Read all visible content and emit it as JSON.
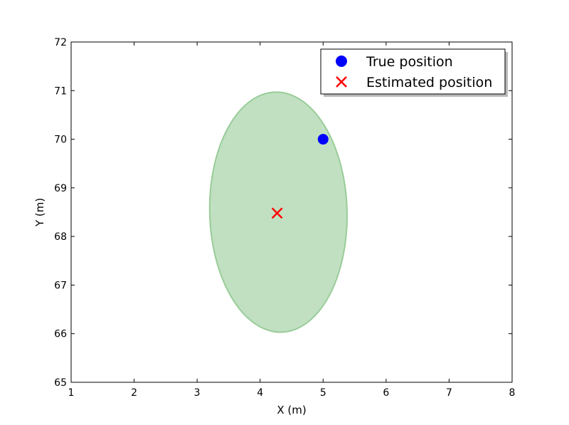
{
  "chart_data": {
    "type": "scatter",
    "xlabel": "X (m)",
    "ylabel": "Y (m)",
    "xlim": [
      1,
      8
    ],
    "ylim": [
      65,
      72
    ],
    "xticks": [
      "1",
      "2",
      "3",
      "4",
      "5",
      "6",
      "7",
      "8"
    ],
    "yticks": [
      "65",
      "66",
      "67",
      "68",
      "69",
      "70",
      "71",
      "72"
    ],
    "grid": false,
    "legend_position": "top-right",
    "series": [
      {
        "name": "True position",
        "marker": "circle",
        "color": "#0000ff",
        "points": [
          {
            "x": 5.0,
            "y": 70.0
          }
        ]
      },
      {
        "name": "Estimated position",
        "marker": "x",
        "color": "#ff0000",
        "points": [
          {
            "x": 4.27,
            "y": 68.48
          }
        ]
      }
    ],
    "ellipse": {
      "center": {
        "x": 4.29,
        "y": 68.5
      },
      "semi_axis_x": 1.09,
      "semi_axis_y": 2.47,
      "tilt_deg": -1.5,
      "fill": "#c1e0c1",
      "stroke": "#99cc99"
    }
  }
}
